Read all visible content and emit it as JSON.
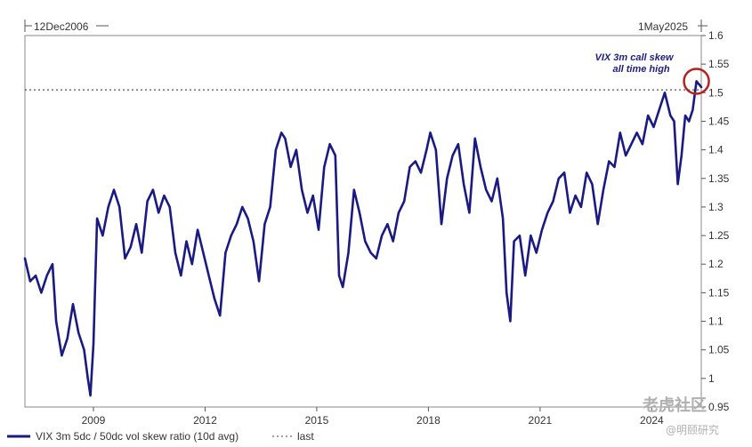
{
  "chart_data": {
    "type": "line",
    "start_label": "12Dec2006",
    "end_label": "1May2025",
    "ylim": [
      0.95,
      1.6
    ],
    "y_ticks": [
      "1.6",
      "1.55",
      "1.5",
      "1.45",
      "1.4",
      "1.35",
      "1.3",
      "1.25",
      "1.2",
      "1.15",
      "1.1",
      "1.05",
      "1",
      "0.95"
    ],
    "x_ticks": [
      "2009",
      "2012",
      "2015",
      "2018",
      "2021",
      "2024"
    ],
    "x_tick_values": [
      2009,
      2012,
      2015,
      2018,
      2021,
      2024
    ],
    "xlim": [
      2007.16,
      2025.33
    ],
    "reference_line": {
      "name": "last",
      "value": 1.505,
      "style": "dotted"
    },
    "annotation": {
      "line1": "VIX 3m call skew",
      "line2": "all time high",
      "x": 2025.2,
      "y": 1.52
    },
    "grid": false,
    "legend": {
      "placement": "bottom-left",
      "series_label": "VIX 3m 5dc / 50dc vol skew ratio (10d avg)",
      "ref_label": "last"
    },
    "series": [
      {
        "name": "VIX 3m 5dc / 50dc vol skew ratio (10d avg)",
        "color": "#1a1a80",
        "x": [
          2007.16,
          2007.3,
          2007.45,
          2007.6,
          2007.75,
          2007.9,
          2008.0,
          2008.15,
          2008.3,
          2008.45,
          2008.6,
          2008.75,
          2008.85,
          2008.92,
          2009.0,
          2009.1,
          2009.25,
          2009.4,
          2009.55,
          2009.7,
          2009.85,
          2010.0,
          2010.15,
          2010.3,
          2010.45,
          2010.6,
          2010.75,
          2010.9,
          2011.05,
          2011.2,
          2011.35,
          2011.5,
          2011.65,
          2011.8,
          2011.95,
          2012.1,
          2012.25,
          2012.4,
          2012.55,
          2012.7,
          2012.85,
          2013.0,
          2013.15,
          2013.3,
          2013.45,
          2013.6,
          2013.75,
          2013.9,
          2014.05,
          2014.15,
          2014.3,
          2014.45,
          2014.6,
          2014.75,
          2014.9,
          2015.05,
          2015.2,
          2015.35,
          2015.5,
          2015.6,
          2015.7,
          2015.85,
          2016.0,
          2016.15,
          2016.3,
          2016.45,
          2016.6,
          2016.75,
          2016.9,
          2017.05,
          2017.2,
          2017.35,
          2017.5,
          2017.65,
          2017.8,
          2017.95,
          2018.05,
          2018.2,
          2018.35,
          2018.5,
          2018.65,
          2018.8,
          2018.95,
          2019.1,
          2019.25,
          2019.4,
          2019.55,
          2019.7,
          2019.85,
          2020.0,
          2020.1,
          2020.2,
          2020.3,
          2020.45,
          2020.6,
          2020.75,
          2020.9,
          2021.05,
          2021.2,
          2021.35,
          2021.5,
          2021.65,
          2021.8,
          2021.95,
          2022.1,
          2022.25,
          2022.4,
          2022.55,
          2022.7,
          2022.85,
          2023.0,
          2023.15,
          2023.3,
          2023.45,
          2023.6,
          2023.75,
          2023.9,
          2024.05,
          2024.2,
          2024.35,
          2024.5,
          2024.6,
          2024.7,
          2024.8,
          2024.9,
          2025.0,
          2025.1,
          2025.2,
          2025.33
        ],
        "values": [
          1.21,
          1.17,
          1.18,
          1.15,
          1.18,
          1.2,
          1.1,
          1.04,
          1.07,
          1.13,
          1.08,
          1.05,
          1.0,
          0.97,
          1.06,
          1.28,
          1.25,
          1.3,
          1.33,
          1.3,
          1.21,
          1.23,
          1.27,
          1.22,
          1.31,
          1.33,
          1.29,
          1.32,
          1.3,
          1.22,
          1.18,
          1.24,
          1.2,
          1.26,
          1.22,
          1.18,
          1.14,
          1.11,
          1.22,
          1.25,
          1.27,
          1.3,
          1.28,
          1.24,
          1.17,
          1.27,
          1.3,
          1.4,
          1.43,
          1.42,
          1.37,
          1.4,
          1.33,
          1.29,
          1.32,
          1.26,
          1.37,
          1.41,
          1.39,
          1.18,
          1.16,
          1.22,
          1.33,
          1.29,
          1.24,
          1.22,
          1.21,
          1.25,
          1.27,
          1.24,
          1.29,
          1.31,
          1.37,
          1.38,
          1.36,
          1.4,
          1.43,
          1.4,
          1.27,
          1.35,
          1.39,
          1.41,
          1.34,
          1.29,
          1.42,
          1.37,
          1.33,
          1.31,
          1.35,
          1.28,
          1.15,
          1.1,
          1.24,
          1.25,
          1.18,
          1.25,
          1.22,
          1.26,
          1.29,
          1.31,
          1.35,
          1.36,
          1.29,
          1.32,
          1.3,
          1.36,
          1.34,
          1.27,
          1.33,
          1.38,
          1.37,
          1.43,
          1.39,
          1.41,
          1.43,
          1.41,
          1.46,
          1.44,
          1.47,
          1.5,
          1.46,
          1.45,
          1.34,
          1.39,
          1.46,
          1.45,
          1.47,
          1.52,
          1.51
        ]
      }
    ]
  },
  "watermark": {
    "brand": "老虎社区",
    "author": "@明颐研究"
  }
}
